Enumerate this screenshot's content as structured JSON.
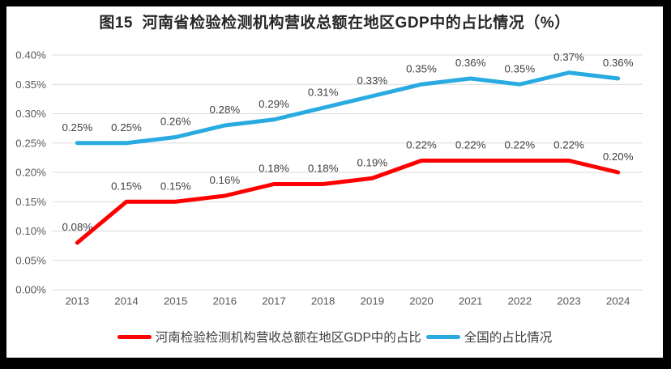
{
  "window": {
    "frame_color": "#000000",
    "background": "#FFFFFF"
  },
  "chart_data": {
    "type": "line",
    "title": "图15  河南省检验检测机构营收总额在地区GDP中的占比情况（%）",
    "xlabel": "",
    "ylabel": "",
    "unit": "%",
    "categories": [
      "2013",
      "2014",
      "2015",
      "2016",
      "2017",
      "2018",
      "2019",
      "2020",
      "2021",
      "2022",
      "2023",
      "2024"
    ],
    "series": [
      {
        "name": "河南检验检测机构营收总额在地区GDP中的占比",
        "color": "#FF0000",
        "values": [
          0.08,
          0.15,
          0.15,
          0.16,
          0.18,
          0.18,
          0.19,
          0.22,
          0.22,
          0.22,
          0.22,
          0.2
        ],
        "data_labels": [
          "0.08%",
          "0.15%",
          "0.15%",
          "0.16%",
          "0.18%",
          "0.18%",
          "0.19%",
          "0.22%",
          "0.22%",
          "0.22%",
          "0.22%",
          "0.20%"
        ]
      },
      {
        "name": "全国的占比情况",
        "color": "#29ABE2",
        "values": [
          0.25,
          0.25,
          0.26,
          0.28,
          0.29,
          0.31,
          0.33,
          0.35,
          0.36,
          0.35,
          0.37,
          0.36
        ],
        "data_labels": [
          "0.25%",
          "0.25%",
          "0.26%",
          "0.28%",
          "0.29%",
          "0.31%",
          "0.33%",
          "0.35%",
          "0.36%",
          "0.35%",
          "0.37%",
          "0.36%"
        ]
      }
    ],
    "ylim": [
      0,
      0.4
    ],
    "y_ticks": [
      "0.40%",
      "0.35%",
      "0.30%",
      "0.25%",
      "0.20%",
      "0.15%",
      "0.10%",
      "0.05%",
      "0.00%"
    ],
    "grid": true,
    "legend_position": "bottom",
    "data_labels_shown": true,
    "line_width": 5,
    "colors": {
      "gridline": "#D9D9D9",
      "tick_label": "#595959",
      "data_label": "#404040",
      "title": "#262626",
      "legend_label": "#404040"
    }
  }
}
